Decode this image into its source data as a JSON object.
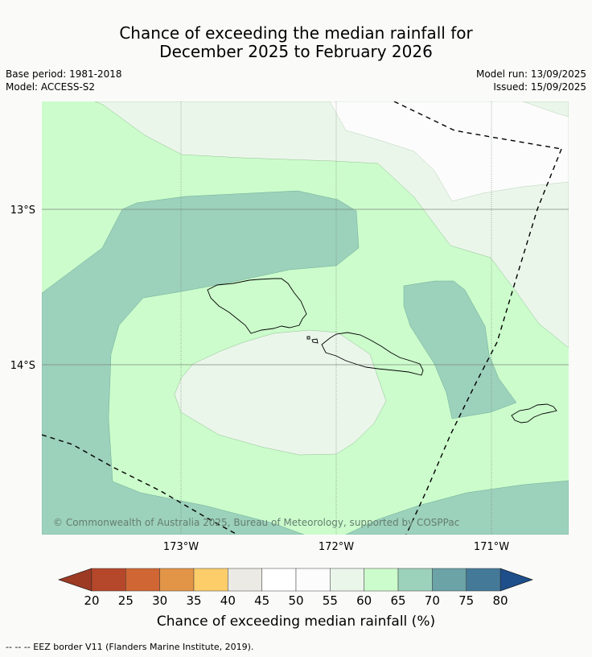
{
  "title": {
    "line1": "Chance of exceeding the median rainfall for",
    "line2": "December 2025 to February 2026"
  },
  "meta_left": {
    "base_period": "Base period: 1981-2018",
    "model": "Model: ACCESS-S2"
  },
  "meta_right": {
    "model_run": "Model run: 13/09/2025",
    "issued": "Issued: 15/09/2025"
  },
  "map": {
    "lat_labels": [
      "13°S",
      "14°S"
    ],
    "lon_labels": [
      "173°W",
      "172°W",
      "171°W"
    ],
    "copyright": "© Commonwealth of Australia 2025, Bureau of Meteorology, supported by COSPPac"
  },
  "colorbar": {
    "ticks": [
      "20",
      "25",
      "30",
      "35",
      "40",
      "45",
      "50",
      "55",
      "60",
      "65",
      "70",
      "75",
      "80"
    ],
    "colors": [
      "#b5472a",
      "#cf6634",
      "#e29547",
      "#fdcd6a",
      "#ebeae4",
      "#ffffff",
      "#fbfcfb",
      "#ebf6eb",
      "#ccfccc",
      "#9cd1bb",
      "#6ba3a7",
      "#447a98"
    ],
    "under_color": "#9c3a23",
    "over_color": "#1e4f8a",
    "label": "Chance of exceeding median rainfall (%)"
  },
  "colors": {
    "light_green": "#ccfccc",
    "pale_green": "#ebf6eb",
    "teal": "#9cd1bb"
  },
  "footer": "--  --  -- EEZ border V11 (Flanders Marine Institute, 2019)."
}
